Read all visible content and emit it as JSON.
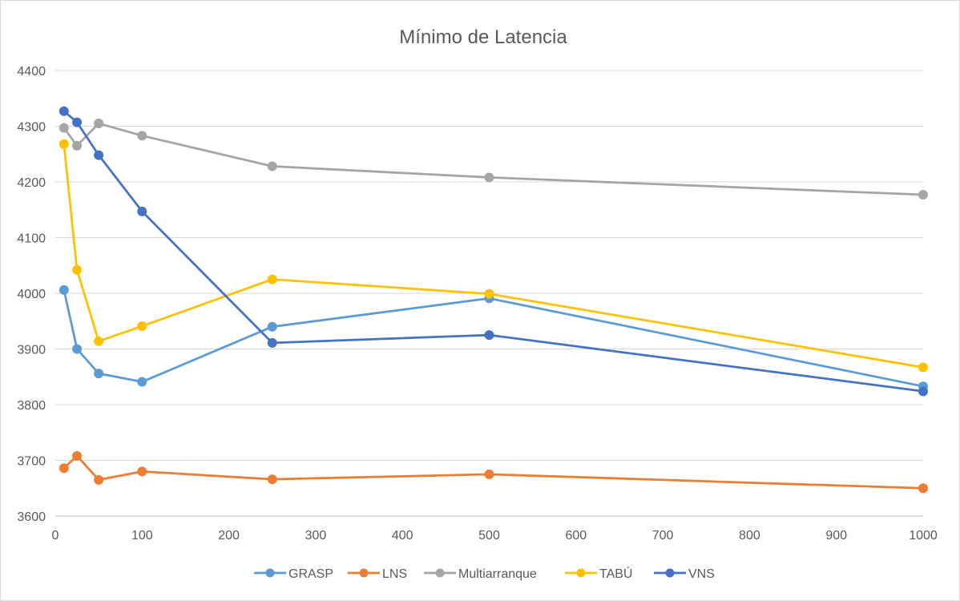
{
  "chart_data": {
    "type": "line",
    "title": "Mínimo de Latencia",
    "xlabel": "",
    "ylabel": "",
    "xlim": [
      0,
      1000
    ],
    "ylim": [
      3600,
      4400
    ],
    "x_ticks": [
      0,
      100,
      200,
      300,
      400,
      500,
      600,
      700,
      800,
      900,
      1000
    ],
    "y_ticks": [
      3600,
      3700,
      3800,
      3900,
      4000,
      4100,
      4200,
      4300,
      4400
    ],
    "x_tick_labels": [
      "0",
      "100",
      "200",
      "300",
      "400",
      "500",
      "600",
      "700",
      "800",
      "900",
      "1000"
    ],
    "y_tick_labels": [
      "3600",
      "3700",
      "3800",
      "3900",
      "4000",
      "4100",
      "4200",
      "4300",
      "4400"
    ],
    "grid": "horizontal",
    "legend_position": "bottom",
    "x": [
      10,
      25,
      50,
      100,
      250,
      500,
      1000
    ],
    "series": [
      {
        "name": "GRASP",
        "color": "#5b9bd5",
        "values": [
          4006,
          3900,
          3856,
          3841,
          3940,
          3991,
          3833
        ]
      },
      {
        "name": "LNS",
        "color": "#ed7d31",
        "values": [
          3686,
          3708,
          3665,
          3680,
          3666,
          3675,
          3650
        ]
      },
      {
        "name": "Multiarranque",
        "color": "#a5a5a5",
        "values": [
          4297,
          4265,
          4305,
          4283,
          4228,
          4208,
          4177
        ]
      },
      {
        "name": "TABÚ",
        "color": "#ffc000",
        "values": [
          4268,
          4042,
          3914,
          3941,
          4025,
          3999,
          3867
        ]
      },
      {
        "name": "VNS",
        "color": "#4472c4",
        "values": [
          4327,
          4307,
          4248,
          4147,
          3911,
          3925,
          3824
        ]
      }
    ]
  }
}
